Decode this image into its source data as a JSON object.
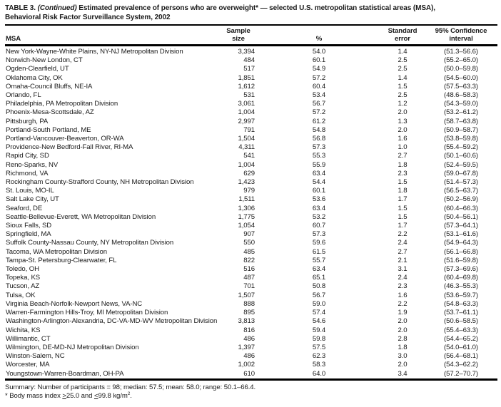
{
  "title": {
    "prefix": "TABLE 3. ",
    "continued": "(Continued)",
    "rest": " Estimated prevalence of persons who are overweight* — selected U.S. metropolitan statistical areas (MSA),",
    "line2": "Behavioral Risk Factor Surveillance System, 2002"
  },
  "table": {
    "columns": {
      "msa": "MSA",
      "sample_line1": "Sample",
      "sample_line2": "size",
      "pct": "%",
      "se_line1": "Standard",
      "se_line2": "error",
      "ci_line1": "95% Confidence",
      "ci_line2": "interval"
    },
    "rows": [
      {
        "msa": "New York-Wayne-White Plains, NY-NJ Metropolitan Division",
        "sample": "3,394",
        "pct": "54.0",
        "se": "1.4",
        "ci": "(51.3–56.6)"
      },
      {
        "msa": "Norwich-New London, CT",
        "sample": "484",
        "pct": "60.1",
        "se": "2.5",
        "ci": "(55.2–65.0)"
      },
      {
        "msa": "Ogden-Clearfield, UT",
        "sample": "517",
        "pct": "54.9",
        "se": "2.5",
        "ci": "(50.0–59.8)"
      },
      {
        "msa": "Oklahoma City, OK",
        "sample": "1,851",
        "pct": "57.2",
        "se": "1.4",
        "ci": "(54.5–60.0)"
      },
      {
        "msa": "Omaha-Council Bluffs, NE-IA",
        "sample": "1,612",
        "pct": "60.4",
        "se": "1.5",
        "ci": "(57.5–63.3)"
      },
      {
        "msa": "Orlando, FL",
        "sample": "531",
        "pct": "53.4",
        "se": "2.5",
        "ci": "(48.6–58.3)"
      },
      {
        "msa": "Philadelphia, PA Metropolitan Division",
        "sample": "3,061",
        "pct": "56.7",
        "se": "1.2",
        "ci": "(54.3–59.0)"
      },
      {
        "msa": "Phoenix-Mesa-Scottsdale, AZ",
        "sample": "1,004",
        "pct": "57.2",
        "se": "2.0",
        "ci": "(53.2–61.2)"
      },
      {
        "msa": "Pittsburgh, PA",
        "sample": "2,997",
        "pct": "61.2",
        "se": "1.3",
        "ci": "(58.7–63.8)"
      },
      {
        "msa": "Portland-South Portland, ME",
        "sample": "791",
        "pct": "54.8",
        "se": "2.0",
        "ci": "(50.9–58.7)"
      },
      {
        "msa": "Portland-Vancouver-Beaverton, OR-WA",
        "sample": "1,504",
        "pct": "56.8",
        "se": "1.6",
        "ci": "(53.8–59.8)"
      },
      {
        "msa": "Providence-New Bedford-Fall River, RI-MA",
        "sample": "4,311",
        "pct": "57.3",
        "se": "1.0",
        "ci": "(55.4–59.2)"
      },
      {
        "msa": "Rapid City, SD",
        "sample": "541",
        "pct": "55.3",
        "se": "2.7",
        "ci": "(50.1–60.6)"
      },
      {
        "msa": "Reno-Sparks, NV",
        "sample": "1,004",
        "pct": "55.9",
        "se": "1.8",
        "ci": "(52.4–59.5)"
      },
      {
        "msa": "Richmond, VA",
        "sample": "629",
        "pct": "63.4",
        "se": "2.3",
        "ci": "(59.0–67.8)"
      },
      {
        "msa": "Rockingham County-Strafford County, NH Metropolitan Division",
        "sample": "1,423",
        "pct": "54.4",
        "se": "1.5",
        "ci": "(51.4–57.3)"
      },
      {
        "msa": "St. Louis, MO-IL",
        "sample": "979",
        "pct": "60.1",
        "se": "1.8",
        "ci": "(56.5–63.7)"
      },
      {
        "msa": "Salt Lake City, UT",
        "sample": "1,511",
        "pct": "53.6",
        "se": "1.7",
        "ci": "(50.2–56.9)"
      },
      {
        "msa": "Seaford, DE",
        "sample": "1,306",
        "pct": "63.4",
        "se": "1.5",
        "ci": "(60.4–66.3)"
      },
      {
        "msa": "Seattle-Bellevue-Everett, WA Metropolitan Division",
        "sample": "1,775",
        "pct": "53.2",
        "se": "1.5",
        "ci": "(50.4–56.1)"
      },
      {
        "msa": "Sioux Falls, SD",
        "sample": "1,054",
        "pct": "60.7",
        "se": "1.7",
        "ci": "(57.3–64.1)"
      },
      {
        "msa": "Springfield, MA",
        "sample": "907",
        "pct": "57.3",
        "se": "2.2",
        "ci": "(53.1–61.6)"
      },
      {
        "msa": "Suffolk County-Nassau County, NY Metropolitan Division",
        "sample": "550",
        "pct": "59.6",
        "se": "2.4",
        "ci": "(54.9–64.3)"
      },
      {
        "msa": "Tacoma, WA Metropolitan Division",
        "sample": "485",
        "pct": "61.5",
        "se": "2.7",
        "ci": "(56.1–66.8)"
      },
      {
        "msa": "Tampa-St. Petersburg-Clearwater, FL",
        "sample": "822",
        "pct": "55.7",
        "se": "2.1",
        "ci": "(51.6–59.8)"
      },
      {
        "msa": "Toledo, OH",
        "sample": "516",
        "pct": "63.4",
        "se": "3.1",
        "ci": "(57.3–69.6)"
      },
      {
        "msa": "Topeka, KS",
        "sample": "487",
        "pct": "65.1",
        "se": "2.4",
        "ci": "(60.4–69.8)"
      },
      {
        "msa": "Tucson, AZ",
        "sample": "701",
        "pct": "50.8",
        "se": "2.3",
        "ci": "(46.3–55.3)"
      },
      {
        "msa": "Tulsa, OK",
        "sample": "1,507",
        "pct": "56.7",
        "se": "1.6",
        "ci": "(53.6–59.7)"
      },
      {
        "msa": "Virginia Beach-Norfolk-Newport News, VA-NC",
        "sample": "888",
        "pct": "59.0",
        "se": "2.2",
        "ci": "(54.8–63.3)"
      },
      {
        "msa": "Warren-Farmington Hills-Troy, MI Metropolitan Division",
        "sample": "895",
        "pct": "57.4",
        "se": "1.9",
        "ci": "(53.7–61.1)"
      },
      {
        "msa": "Washington-Arlington-Alexandria, DC-VA-MD-WV Metropolitan Division",
        "sample": "3,813",
        "pct": "54.6",
        "se": "2.0",
        "ci": "(50.6–58.5)"
      },
      {
        "msa": "Wichita, KS",
        "sample": "816",
        "pct": "59.4",
        "se": "2.0",
        "ci": "(55.4–63.3)"
      },
      {
        "msa": "Willimantic, CT",
        "sample": "486",
        "pct": "59.8",
        "se": "2.8",
        "ci": "(54.4–65.2)"
      },
      {
        "msa": "Wilmington, DE-MD-NJ Metropolitan Division",
        "sample": "1,397",
        "pct": "57.5",
        "se": "1.8",
        "ci": "(54.0–61.0)"
      },
      {
        "msa": "Winston-Salem, NC",
        "sample": "486",
        "pct": "62.3",
        "se": "3.0",
        "ci": "(56.4–68.1)"
      },
      {
        "msa": "Worcester, MA",
        "sample": "1,002",
        "pct": "58.3",
        "se": "2.0",
        "ci": "(54.3–62.2)"
      },
      {
        "msa": "Youngstown-Warren-Boardman, OH-PA",
        "sample": "610",
        "pct": "64.0",
        "se": "3.4",
        "ci": "(57.2–70.7)"
      }
    ]
  },
  "footer": {
    "summary": "Summary: Number of participants = 98; median: 57.5; mean: 58.0; range: 50.1–66.4.",
    "footnote": {
      "star": "*",
      "part1": " Body mass index ",
      "gte": ">",
      "part2": "25.0 and ",
      "lte": "<",
      "part3": "99.8 kg/m",
      "sup": "2",
      "end": "."
    }
  }
}
